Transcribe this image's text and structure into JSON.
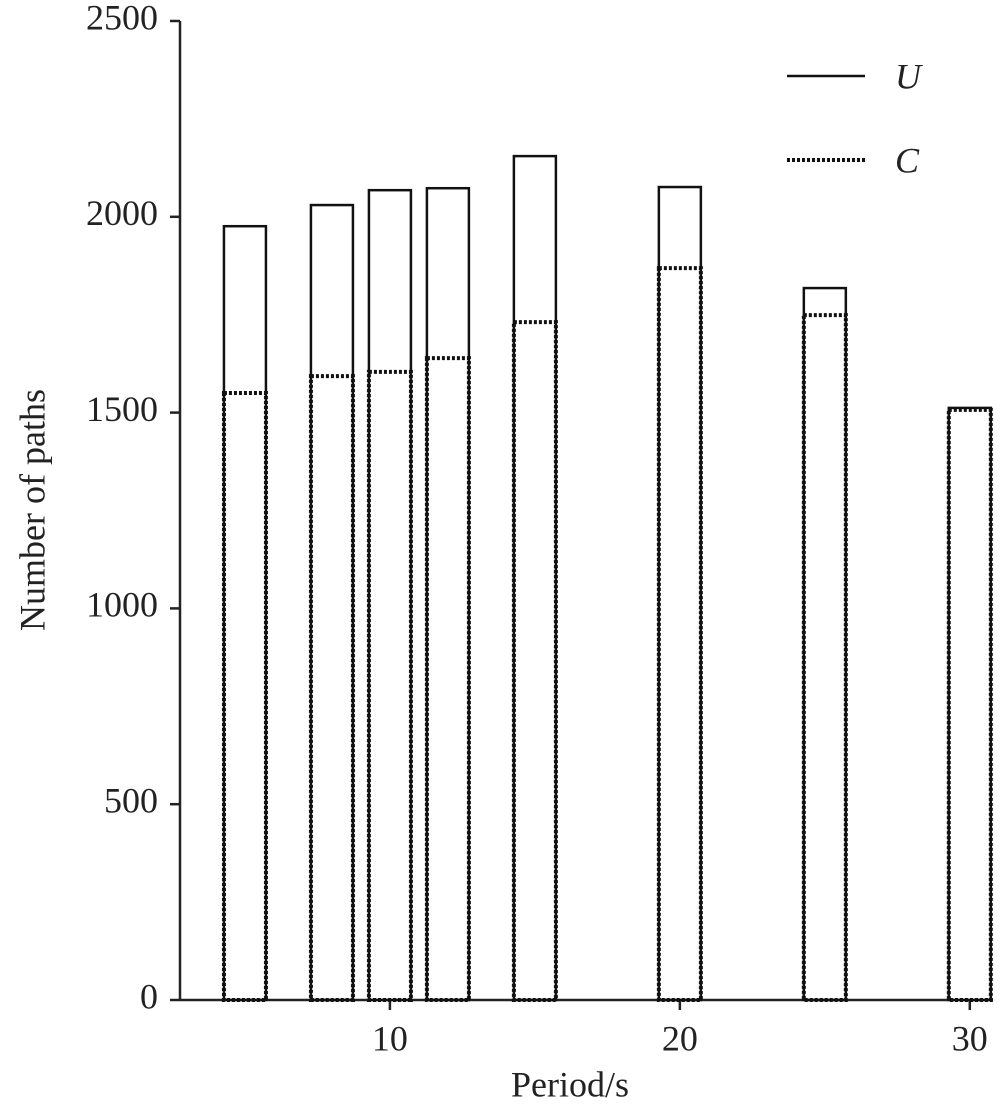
{
  "chart_data": {
    "type": "bar",
    "x_label": "Period/s",
    "y_label": "Number of paths",
    "x": [
      5,
      8,
      10,
      12,
      15,
      20,
      25,
      30
    ],
    "series": [
      {
        "name": "U",
        "color": "#111111",
        "style": "solid",
        "values": [
          1976,
          2030,
          2068,
          2073,
          2155,
          2076,
          1818,
          1512
        ]
      },
      {
        "name": "C",
        "color": "#111111",
        "style": "dotted",
        "values": [
          1550,
          1593,
          1604,
          1639,
          1731,
          1869,
          1749,
          1507
        ]
      }
    ],
    "xlim": [
      2.76,
      30.8
    ],
    "xticks": [
      10,
      20,
      30
    ],
    "ylim": [
      0,
      2500
    ],
    "yticks": [
      0,
      500,
      1000,
      1500,
      2000,
      2500
    ],
    "legend": "top-right"
  }
}
